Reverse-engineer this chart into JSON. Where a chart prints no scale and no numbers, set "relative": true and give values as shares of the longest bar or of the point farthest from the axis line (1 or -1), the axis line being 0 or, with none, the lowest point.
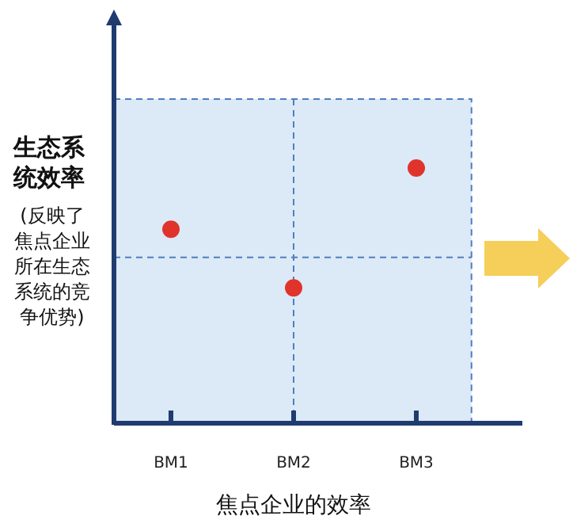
{
  "chart_data": {
    "type": "scatter",
    "relative": true,
    "xlabel": "焦点企业的效率",
    "ylabel": "生态系统效率",
    "annotations": [
      "(反映了焦点企业所在生态系统的竞争优势)"
    ],
    "categories": [
      "BM1",
      "BM2",
      "BM3"
    ],
    "series": [
      {
        "color": "#e0332b",
        "values": [
          0.76,
          0.53,
          1
        ]
      }
    ],
    "marker": "circle",
    "bands": [
      {
        "axis": "y",
        "from": 0,
        "to": 1.27,
        "color": "#dce9f6"
      }
    ],
    "ref_lines": [
      {
        "axis": "y",
        "value": 0.65,
        "line_style": "dashed"
      },
      {
        "axis": "x",
        "value": "BM2",
        "line_style": "dashed"
      }
    ]
  }
}
